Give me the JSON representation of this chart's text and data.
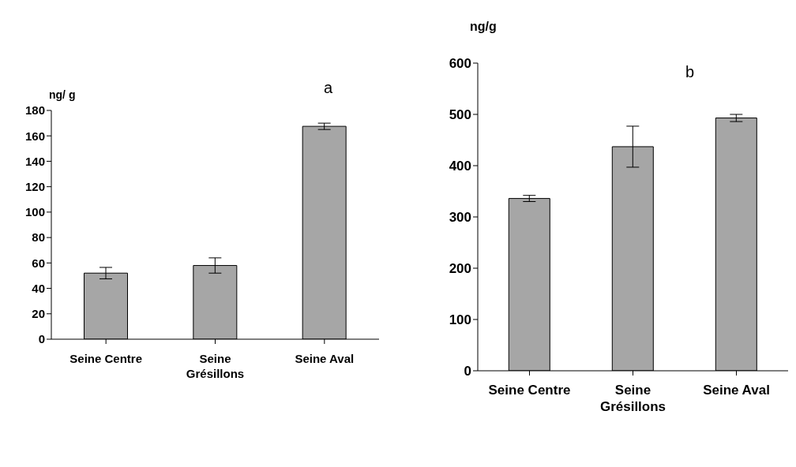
{
  "chart_data": [
    {
      "type": "bar",
      "ylabel": "ng/ g",
      "annotations": [
        "a"
      ],
      "categories": [
        "Seine Centre",
        "Seine Grésillons",
        "Seine Aval"
      ],
      "values": [
        52,
        58,
        167.5
      ],
      "errors": [
        4.5,
        6,
        2.5
      ],
      "color": "#a6a6a6",
      "ylim": [
        0,
        180
      ],
      "yticks": [
        0,
        20,
        40,
        60,
        80,
        100,
        120,
        140,
        160,
        180
      ],
      "grid": false,
      "legend": false
    },
    {
      "type": "bar",
      "ylabel": "ng/g",
      "annotations": [
        "b"
      ],
      "categories": [
        "Seine Centre",
        "Seine Grésillons",
        "Seine Aval"
      ],
      "values": [
        336,
        437,
        493
      ],
      "errors": [
        6,
        40,
        7
      ],
      "color": "#a6a6a6",
      "ylim": [
        0,
        600
      ],
      "yticks": [
        0,
        100,
        200,
        300,
        400,
        500,
        600
      ],
      "grid": false,
      "legend": false
    }
  ]
}
